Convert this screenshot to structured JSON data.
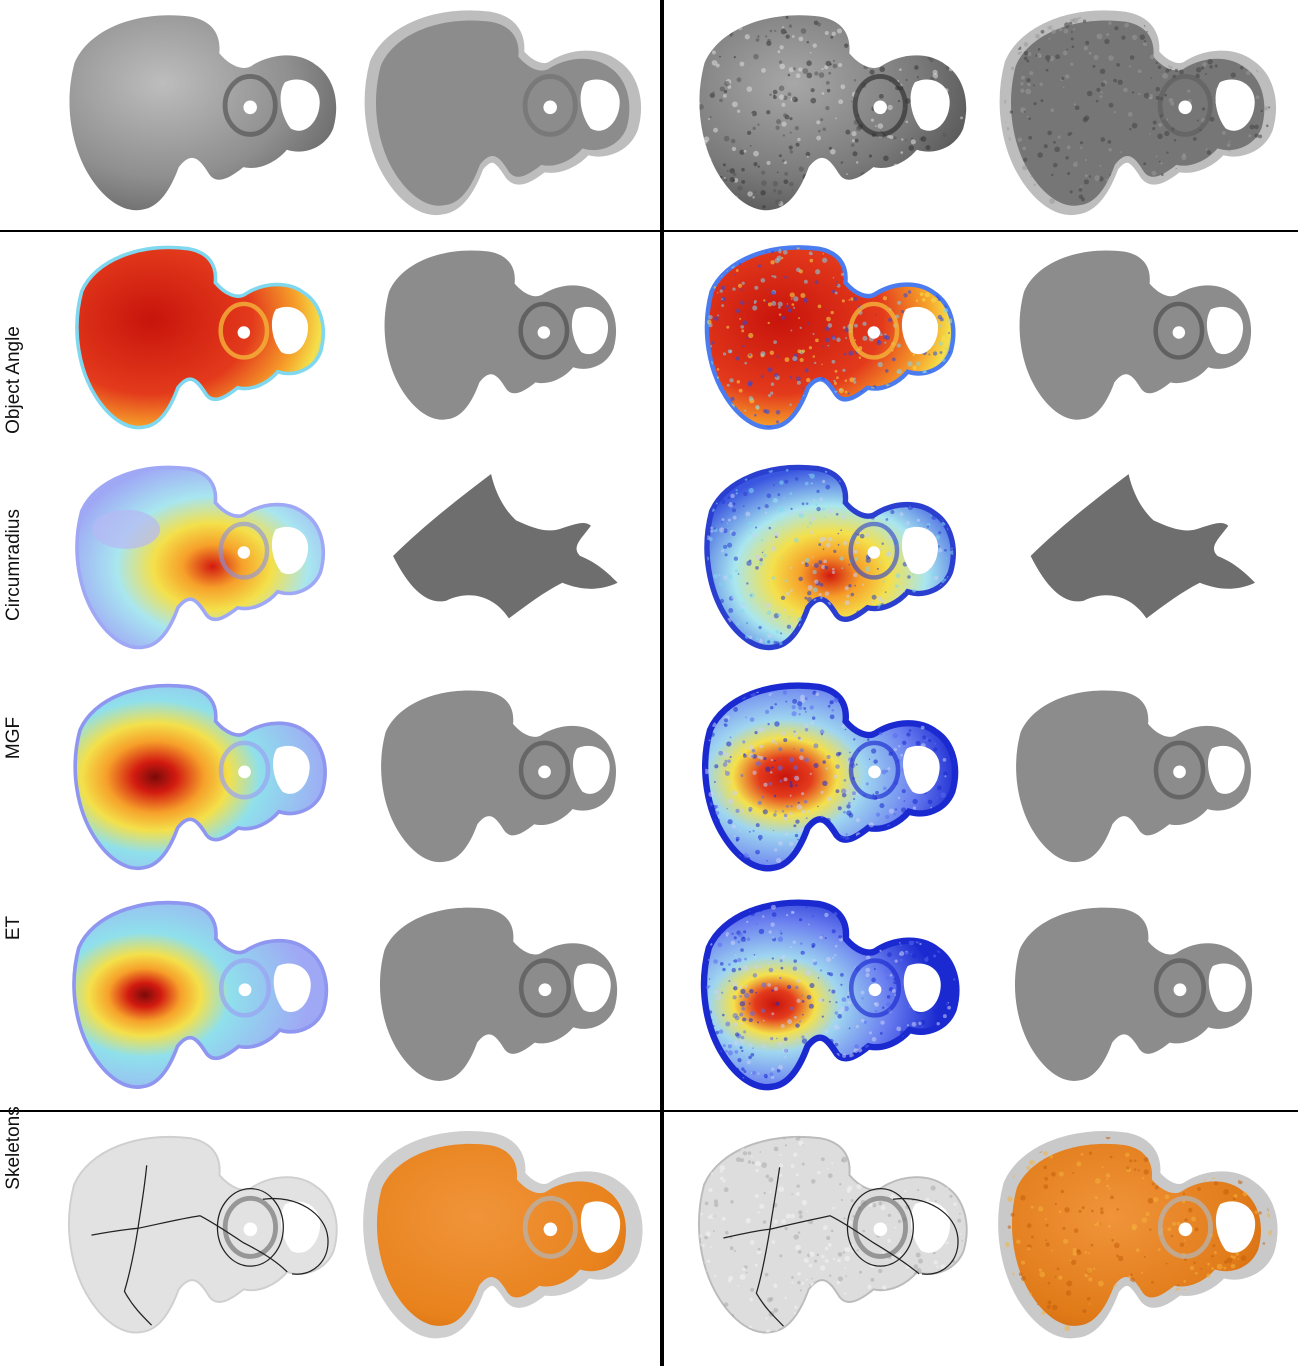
{
  "row_labels": {
    "object_angle": "Object Angle",
    "circumradius": "Circumradius",
    "mgf": "MGF",
    "et": "ET",
    "skeletons": "Skeletons"
  },
  "colors": {
    "surface_gray": "#8c8c8c",
    "surface_dark": "#6e6e6e",
    "halo_gray": "#bdbdbd",
    "heat_red": "#d21a10",
    "heat_yellow": "#f4e04a",
    "heat_cyan": "#7fd8f0",
    "heat_blue": "#9fa8f5",
    "skeleton_orange": "#e8821c",
    "skeleton_line": "#222222"
  }
}
